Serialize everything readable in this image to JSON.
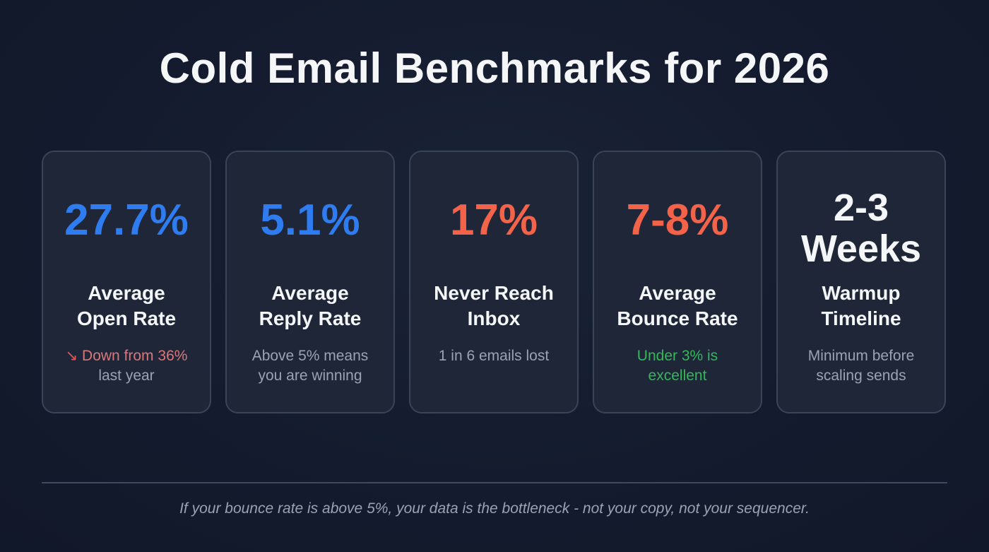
{
  "title": "Cold Email Benchmarks for 2026",
  "colors": {
    "blue": "#2f7cf0",
    "red": "#f2634a",
    "white": "#f5f6f8",
    "down_red": "#e4555a",
    "green": "#34b85a",
    "muted": "#9aa3b2"
  },
  "cards": [
    {
      "stat": "27.7%",
      "stat_color": "blue",
      "label": "Average Open Rate",
      "sub_icon": "↘",
      "sub_highlight": "Down from 36%",
      "sub_rest": "last year"
    },
    {
      "stat": "5.1%",
      "stat_color": "blue",
      "label": "Average Reply Rate",
      "sub": "Above 5% means you are winning"
    },
    {
      "stat": "17%",
      "stat_color": "red",
      "label": "Never Reach Inbox",
      "sub": "1 in 6 emails lost"
    },
    {
      "stat": "7-8%",
      "stat_color": "red",
      "label": "Average Bounce Rate",
      "sub": "Under 3% is excellent",
      "sub_color": "green"
    },
    {
      "stat": "2-3 Weeks",
      "stat_color": "white",
      "label": "Warmup Timeline",
      "sub": "Minimum before scaling sends"
    }
  ],
  "footer": "If your bounce rate is above 5%, your data is the bottleneck - not your copy, not your sequencer."
}
